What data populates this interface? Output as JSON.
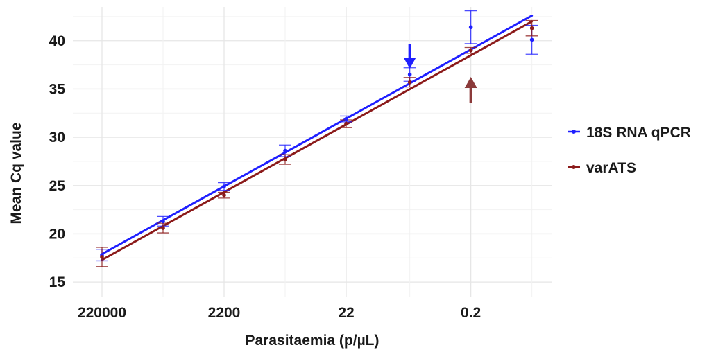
{
  "chart_data": {
    "type": "scatter",
    "xlabel": "Parasitaemia (p/µL)",
    "ylabel": "Mean Cq value",
    "x_scale": "log10 (reversed)",
    "x_tick_labels": [
      "220000",
      "2200",
      "22",
      "0.2"
    ],
    "x_values": [
      220000,
      22000,
      2200,
      220,
      22,
      2,
      0.2,
      0.02
    ],
    "ylim": [
      13.5,
      43.5
    ],
    "y_ticks": [
      15,
      20,
      25,
      30,
      35,
      40
    ],
    "grid": true,
    "legend_position": "right",
    "series": [
      {
        "name": "18S RNA qPCR",
        "color": "#1f1fff",
        "mean": [
          17.8,
          21.3,
          24.9,
          28.6,
          31.9,
          36.5,
          41.4,
          40.1
        ],
        "error": [
          0.6,
          0.5,
          0.4,
          0.6,
          0.3,
          0.7,
          1.7,
          1.5
        ],
        "fit_line": {
          "start": 17.9,
          "end": 42.6
        }
      },
      {
        "name": "varATS",
        "color": "#8b1a1a",
        "mean": [
          17.6,
          20.6,
          24.0,
          27.7,
          31.4,
          35.7,
          39.0,
          41.3
        ],
        "error": [
          1.0,
          0.5,
          0.3,
          0.5,
          0.4,
          0.5,
          0.3,
          0.8
        ],
        "fit_line": {
          "start": 17.3,
          "end": 42.0
        }
      }
    ],
    "annotations": [
      {
        "type": "arrow-down",
        "color": "#1f1fff",
        "at_x": 2
      },
      {
        "type": "arrow-up",
        "color": "#8b3a3a",
        "at_x": 0.2
      }
    ]
  }
}
